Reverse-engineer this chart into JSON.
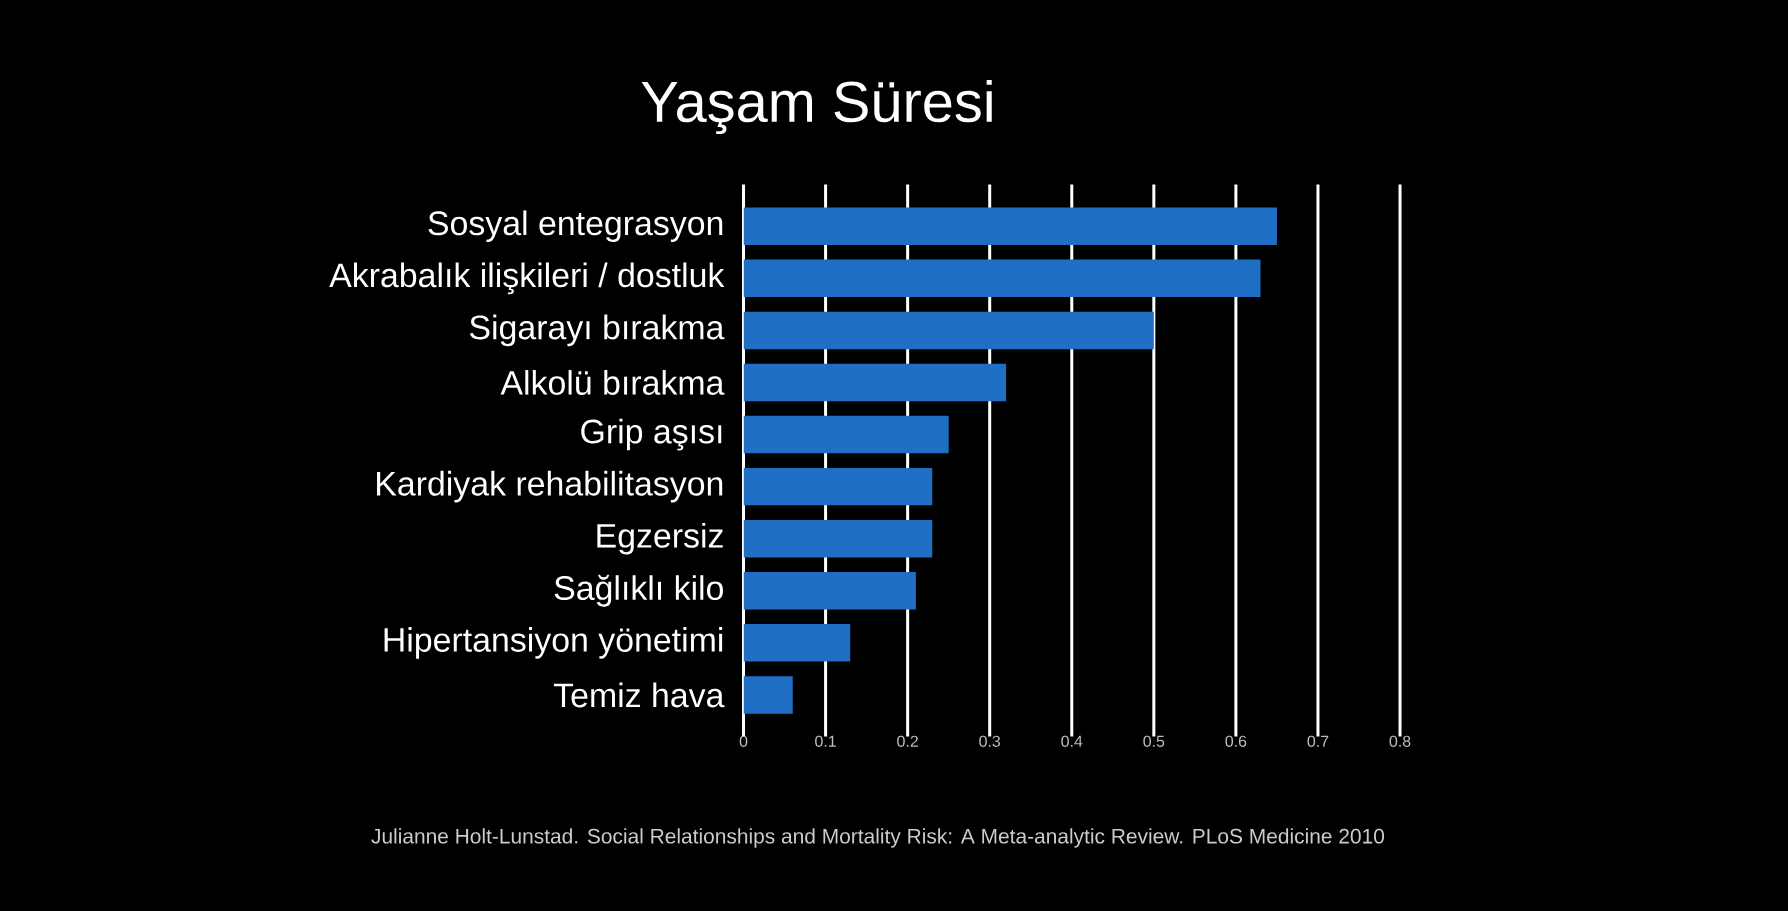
{
  "chart_data": {
    "type": "bar",
    "orientation": "horizontal",
    "title": "Yaşam Süresi",
    "categories": [
      "Sosyal entegrasyon",
      "Akrabalık ilişkileri / dostluk",
      "Sigarayı bırakma",
      "Alkolü bırakma",
      "Grip aşısı",
      "Kardiyak rehabilitasyon",
      "Egzersiz",
      "Sağlıklı kilo",
      "Hipertansiyon yönetimi",
      "Temiz hava"
    ],
    "values": [
      0.65,
      0.63,
      0.5,
      0.32,
      0.25,
      0.23,
      0.23,
      0.21,
      0.13,
      0.06
    ],
    "color": "#1f6fc4",
    "xlim": [
      0,
      0.8
    ],
    "xticks": [
      0,
      0.1,
      0.2,
      0.3,
      0.4,
      0.5,
      0.6,
      0.7,
      0.8
    ],
    "grid": "x",
    "annotations": [
      "Julianne Holt-Lunstad. Social Relationships and Mortality Risk: A Meta-analytic Review. PLoS Medicine 2010"
    ]
  }
}
